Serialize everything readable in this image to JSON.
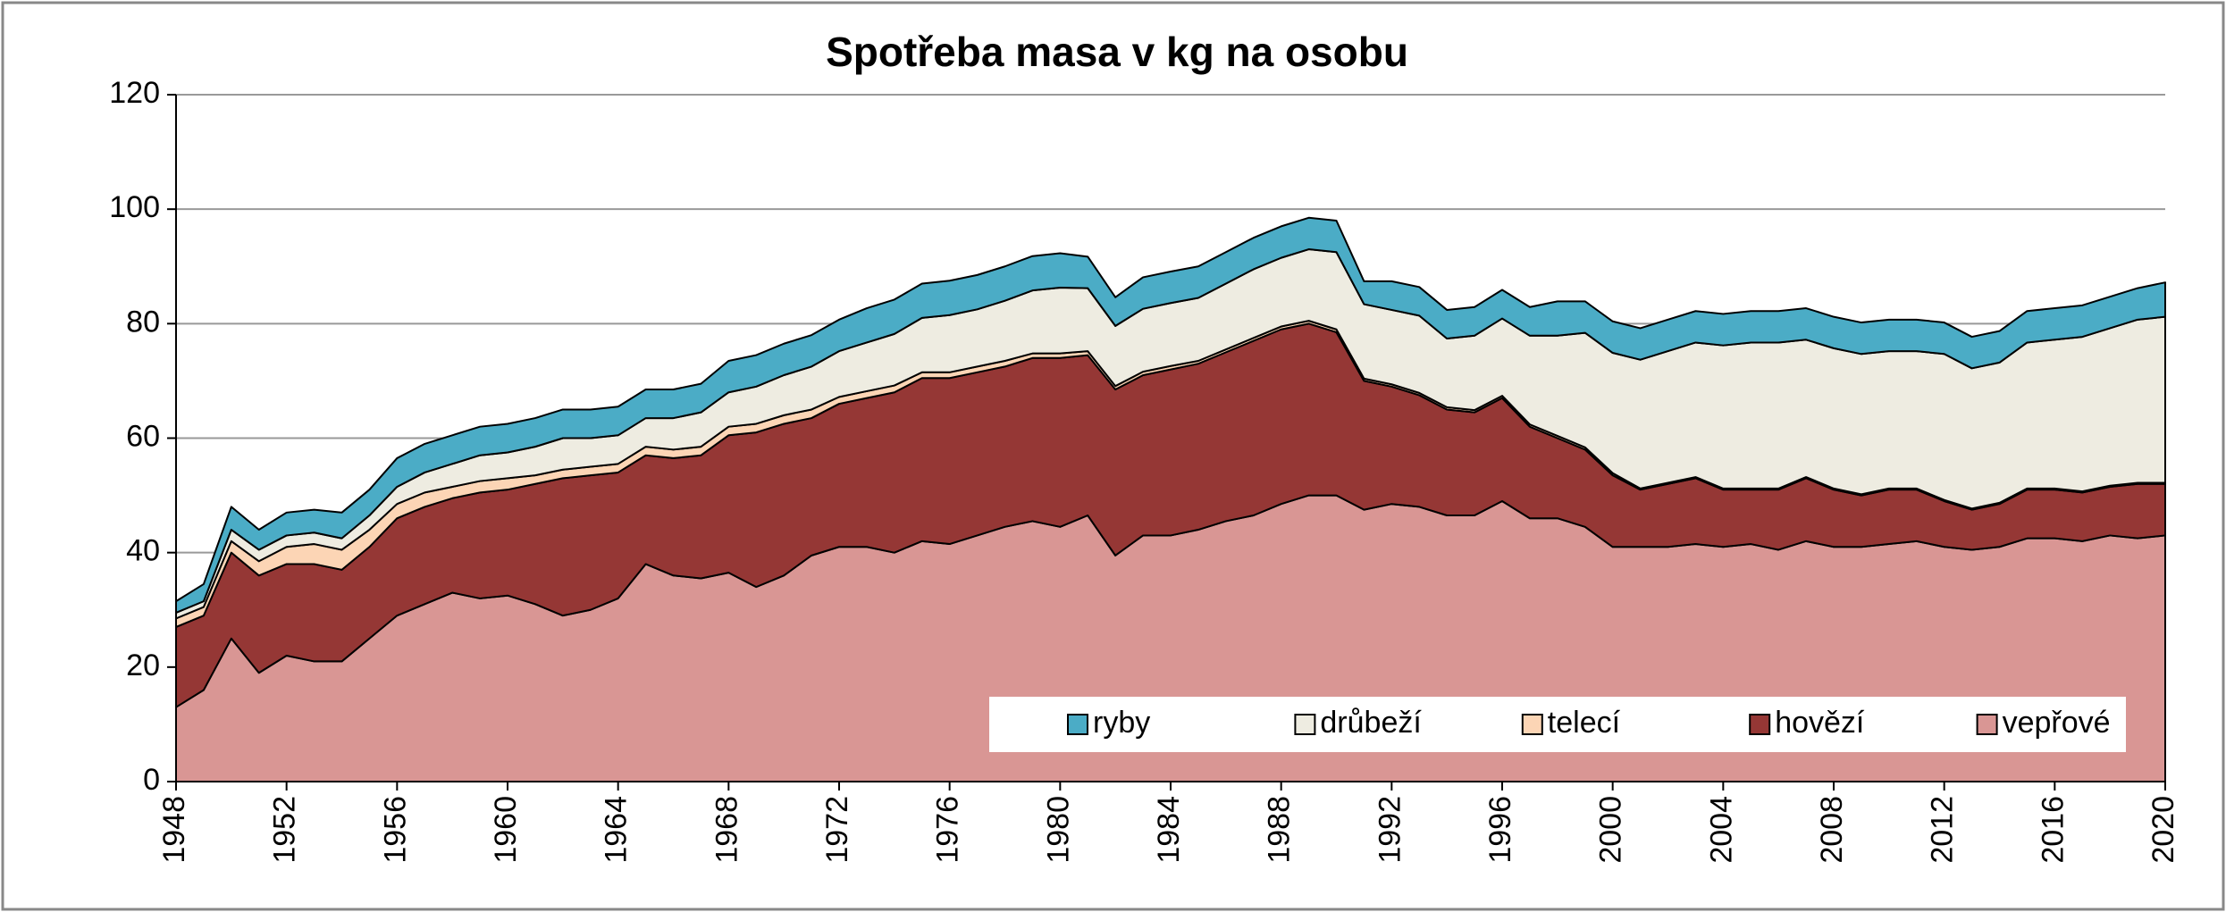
{
  "chart_data": {
    "type": "stacked_area",
    "title": "Spotřeba masa v kg na osobu",
    "x": [
      1948,
      1949,
      1950,
      1951,
      1952,
      1953,
      1954,
      1955,
      1956,
      1957,
      1958,
      1959,
      1960,
      1961,
      1962,
      1963,
      1964,
      1965,
      1966,
      1967,
      1968,
      1969,
      1970,
      1971,
      1972,
      1973,
      1974,
      1975,
      1976,
      1977,
      1978,
      1979,
      1980,
      1981,
      1982,
      1983,
      1984,
      1985,
      1986,
      1987,
      1988,
      1989,
      1990,
      1991,
      1992,
      1993,
      1994,
      1995,
      1996,
      1997,
      1998,
      1999,
      2000,
      2001,
      2002,
      2003,
      2004,
      2005,
      2006,
      2007,
      2008,
      2009,
      2010,
      2011,
      2012,
      2013,
      2014,
      2015,
      2016,
      2017,
      2018,
      2019,
      2020
    ],
    "xlim": [
      1948,
      2020
    ],
    "xticks": [
      1948,
      1952,
      1956,
      1960,
      1964,
      1968,
      1972,
      1976,
      1980,
      1984,
      1988,
      1992,
      1996,
      2000,
      2004,
      2008,
      2012,
      2016,
      2020
    ],
    "ylim": [
      0,
      120
    ],
    "yticks": [
      0,
      20,
      40,
      60,
      80,
      100,
      120
    ],
    "grid": true,
    "legend": "bottom-right",
    "series": [
      {
        "name": "vepřové",
        "color": "#d99694",
        "values": [
          13,
          16,
          25,
          19,
          22,
          21,
          21,
          25,
          29,
          31,
          33,
          32,
          32.5,
          31,
          29,
          30,
          32,
          38,
          36,
          35.5,
          36.5,
          34,
          36,
          39.5,
          41,
          41,
          40,
          42,
          41.5,
          43,
          44.5,
          45.5,
          44.5,
          46.5,
          39.5,
          43,
          43,
          44,
          45.5,
          46.5,
          48.5,
          50,
          50,
          47.5,
          48.5,
          48,
          46.5,
          46.5,
          49,
          46,
          46,
          44.5,
          41,
          41,
          41,
          41.5,
          41,
          41.5,
          40.5,
          42,
          41,
          41,
          41.5,
          42,
          41,
          40.5,
          41,
          42.5,
          42.5,
          42,
          43,
          42.5,
          43
        ]
      },
      {
        "name": "hovězí",
        "color": "#953735",
        "values": [
          14,
          13,
          15,
          17,
          16,
          17,
          16,
          16,
          17,
          17,
          16.5,
          18.5,
          18.5,
          21,
          24,
          23.5,
          22,
          19,
          20.5,
          21.5,
          24,
          27,
          26.5,
          24,
          25,
          26,
          28,
          28.5,
          29,
          28.5,
          28,
          28.5,
          29.5,
          28,
          29,
          28,
          29,
          29,
          29.5,
          30.5,
          30.5,
          30,
          28.5,
          22.5,
          20.5,
          19.5,
          18.5,
          18,
          18,
          16,
          14,
          13.5,
          12.5,
          10,
          11,
          11.5,
          10,
          9.5,
          10.5,
          11,
          10,
          9,
          9.5,
          9,
          8,
          7,
          7.5,
          8.5,
          8.5,
          8.5,
          8.5,
          9.5,
          9
        ]
      },
      {
        "name": "telecí",
        "color": "#fcd5b5",
        "values": [
          1.5,
          1.5,
          2,
          2.5,
          3,
          3.5,
          3.5,
          3,
          2.5,
          2.5,
          2,
          2,
          2,
          1.5,
          1.5,
          1.5,
          1.5,
          1.5,
          1.5,
          1.5,
          1.5,
          1.5,
          1.5,
          1.5,
          1.2,
          1.2,
          1.2,
          1,
          1,
          1,
          1,
          0.8,
          0.8,
          0.7,
          0.6,
          0.6,
          0.6,
          0.5,
          0.5,
          0.5,
          0.5,
          0.5,
          0.5,
          0.4,
          0.4,
          0.4,
          0.4,
          0.4,
          0.4,
          0.4,
          0.4,
          0.4,
          0.4,
          0.2,
          0.2,
          0.2,
          0.2,
          0.2,
          0.2,
          0.2,
          0.2,
          0.2,
          0.2,
          0.2,
          0.2,
          0.2,
          0.2,
          0.2,
          0.2,
          0.2,
          0.2,
          0.2,
          0.2
        ]
      },
      {
        "name": "drůbeží",
        "color": "#eeece1",
        "values": [
          1,
          1,
          2,
          2,
          2,
          2,
          2,
          2.5,
          3,
          3.5,
          4,
          4.5,
          4.5,
          5,
          5.5,
          5,
          5,
          5,
          5.5,
          6,
          6,
          6.5,
          7,
          7.5,
          8,
          8.5,
          9,
          9.5,
          10,
          10,
          10.5,
          11,
          11.5,
          11,
          10.5,
          11,
          11,
          11,
          11.5,
          12,
          12,
          12.5,
          13.5,
          13,
          13,
          13.5,
          12,
          13,
          13.5,
          15.5,
          17.5,
          20,
          21,
          22.5,
          23,
          23.5,
          25,
          25.5,
          25.5,
          24,
          24.5,
          24.5,
          24,
          24,
          25.5,
          24.5,
          24.5,
          25.5,
          26,
          27,
          27.5,
          28.5,
          29
        ]
      },
      {
        "name": "ryby",
        "color": "#4bacc6",
        "values": [
          2,
          3,
          4,
          3.5,
          4,
          4,
          4.5,
          4.5,
          5,
          5,
          5,
          5,
          5,
          5,
          5,
          5,
          5,
          5,
          5,
          5,
          5.5,
          5.5,
          5.5,
          5.5,
          5.5,
          6,
          6,
          6,
          6,
          6,
          6,
          6,
          6,
          5.5,
          5,
          5.5,
          5.5,
          5.5,
          5.5,
          5.5,
          5.5,
          5.5,
          5.5,
          4,
          5,
          5,
          5,
          5,
          5,
          5,
          6,
          5.5,
          5.5,
          5.5,
          5.5,
          5.5,
          5.5,
          5.5,
          5.5,
          5.5,
          5.5,
          5.5,
          5.5,
          5.5,
          5.5,
          5.5,
          5.5,
          5.5,
          5.5,
          5.5,
          5.5,
          5.5,
          6
        ]
      }
    ]
  }
}
